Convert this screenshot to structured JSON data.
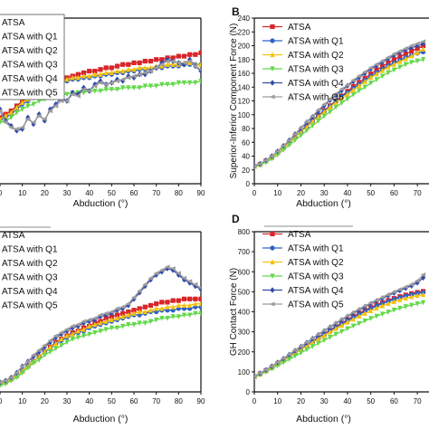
{
  "colors": {
    "ATSA": "#d7262a",
    "ATSA with Q1": "#2d62c7",
    "ATSA with Q2": "#f4c20d",
    "ATSA with Q3": "#63d84a",
    "ATSA with Q4": "#334baa",
    "ATSA with Q5": "#9c9c9c"
  },
  "markers": {
    "ATSA": "square",
    "ATSA with Q1": "circle",
    "ATSA with Q2": "triangle-up",
    "ATSA with Q3": "triangle-down",
    "ATSA with Q4": "diamond",
    "ATSA with Q5": "triangle-left"
  },
  "chart_data": [
    {
      "panel": "",
      "type": "line",
      "xlabel": "Abduction (°)",
      "ylabel": "",
      "xlim": [
        0,
        90
      ],
      "ylim": [
        0,
        100
      ],
      "xticks": [
        0,
        10,
        20,
        30,
        40,
        50,
        60,
        70,
        80,
        90
      ],
      "legend": "top-left",
      "x": [
        0,
        2.5,
        5,
        7.5,
        10,
        12.5,
        15,
        17.5,
        20,
        22.5,
        25,
        27.5,
        30,
        32.5,
        35,
        37.5,
        40,
        42.5,
        45,
        47.5,
        50,
        52.5,
        55,
        57.5,
        60,
        62.5,
        65,
        67.5,
        70,
        72.5,
        75,
        77.5,
        80,
        82.5,
        85,
        87.5,
        90
      ],
      "series": [
        {
          "name": "ATSA",
          "values": [
            40,
            42,
            44,
            47,
            50,
            52,
            54,
            56,
            58,
            60,
            62,
            63,
            64,
            65,
            66,
            67,
            68,
            68,
            69,
            70,
            70,
            71,
            72,
            72,
            73,
            73,
            74,
            74,
            75,
            75,
            76,
            76,
            77,
            77,
            78,
            78,
            79
          ]
        },
        {
          "name": "ATSA with Q1",
          "values": [
            38,
            40,
            42,
            45,
            48,
            50,
            52,
            54,
            56,
            58,
            60,
            61,
            62,
            63,
            63,
            64,
            64,
            65,
            65,
            66,
            66,
            67,
            67,
            68,
            68,
            69,
            69,
            69,
            70,
            70,
            71,
            71,
            71,
            72,
            72,
            72,
            72
          ]
        },
        {
          "name": "ATSA with Q2",
          "values": [
            39,
            41,
            43,
            46,
            49,
            51,
            53,
            55,
            57,
            59,
            61,
            62,
            63,
            64,
            64,
            65,
            65,
            66,
            66,
            67,
            67,
            68,
            68,
            69,
            69,
            70,
            70,
            70,
            71,
            71,
            72,
            72,
            72,
            73,
            73,
            72,
            72
          ]
        },
        {
          "name": "ATSA with Q3",
          "values": [
            37,
            38,
            40,
            43,
            45,
            47,
            48,
            50,
            51,
            52,
            53,
            54,
            54,
            55,
            55,
            55,
            56,
            56,
            56,
            57,
            57,
            57,
            58,
            58,
            58,
            58,
            59,
            59,
            59,
            60,
            60,
            60,
            61,
            61,
            61,
            61,
            62
          ]
        },
        {
          "name": "ATSA with Q4",
          "values": [
            45,
            38,
            35,
            32,
            33,
            40,
            36,
            42,
            38,
            45,
            48,
            52,
            50,
            55,
            54,
            58,
            56,
            60,
            62,
            60,
            61,
            63,
            62,
            65,
            64,
            66,
            66,
            68,
            70,
            73,
            75,
            74,
            73,
            72,
            75,
            71,
            68
          ]
        },
        {
          "name": "ATSA with Q5",
          "values": [
            44,
            37,
            34,
            33,
            34,
            39,
            37,
            41,
            39,
            44,
            47,
            50,
            50,
            54,
            53,
            57,
            56,
            59,
            61,
            60,
            61,
            62,
            63,
            64,
            65,
            66,
            67,
            68,
            70,
            72,
            74,
            74,
            73,
            73,
            74,
            71,
            69
          ]
        }
      ]
    },
    {
      "panel": "B",
      "type": "line",
      "xlabel": "Abduction (°)",
      "ylabel": "Superior-Inferior Component Force (N)",
      "xlim": [
        0,
        75
      ],
      "ylim": [
        0,
        240
      ],
      "xticks": [
        0,
        10,
        20,
        30,
        40,
        50,
        60,
        70
      ],
      "yticks": [
        0,
        20,
        40,
        60,
        80,
        100,
        120,
        140,
        160,
        180,
        200,
        220,
        240
      ],
      "legend": "top-left",
      "x": [
        0,
        2.5,
        5,
        7.5,
        10,
        12.5,
        15,
        17.5,
        20,
        22.5,
        25,
        27.5,
        30,
        32.5,
        35,
        37.5,
        40,
        42.5,
        45,
        47.5,
        50,
        52.5,
        55,
        57.5,
        60,
        62.5,
        65,
        67.5,
        70,
        72.5
      ],
      "series": [
        {
          "name": "ATSA",
          "values": [
            25,
            28,
            33,
            38,
            45,
            52,
            60,
            68,
            76,
            84,
            92,
            99,
            106,
            113,
            120,
            127,
            134,
            141,
            147,
            153,
            159,
            165,
            170,
            175,
            180,
            184,
            188,
            192,
            196,
            200
          ]
        },
        {
          "name": "ATSA with Q1",
          "values": [
            25,
            28,
            33,
            38,
            45,
            52,
            60,
            68,
            75,
            83,
            91,
            98,
            105,
            112,
            119,
            126,
            132,
            138,
            144,
            150,
            156,
            161,
            166,
            171,
            175,
            179,
            183,
            186,
            189,
            191
          ]
        },
        {
          "name": "ATSA with Q2",
          "values": [
            25,
            28,
            33,
            38,
            45,
            52,
            59,
            67,
            75,
            82,
            90,
            97,
            104,
            111,
            118,
            124,
            130,
            136,
            142,
            148,
            154,
            159,
            164,
            169,
            173,
            177,
            181,
            185,
            190,
            195
          ]
        },
        {
          "name": "ATSA with Q3",
          "values": [
            24,
            27,
            31,
            36,
            42,
            49,
            56,
            63,
            70,
            77,
            84,
            91,
            98,
            104,
            111,
            117,
            123,
            129,
            135,
            140,
            146,
            151,
            156,
            161,
            165,
            169,
            173,
            176,
            178,
            180
          ]
        },
        {
          "name": "ATSA with Q4",
          "values": [
            26,
            29,
            34,
            40,
            47,
            55,
            63,
            72,
            80,
            89,
            97,
            105,
            113,
            121,
            128,
            135,
            142,
            148,
            154,
            160,
            166,
            171,
            176,
            181,
            186,
            190,
            194,
            197,
            200,
            203
          ]
        },
        {
          "name": "ATSA with Q5",
          "values": [
            26,
            29,
            34,
            40,
            47,
            55,
            63,
            72,
            81,
            90,
            98,
            107,
            115,
            122,
            130,
            137,
            143,
            150,
            156,
            162,
            168,
            173,
            178,
            183,
            188,
            192,
            196,
            200,
            203,
            206
          ]
        }
      ]
    },
    {
      "panel": "",
      "type": "line",
      "xlabel": "Abduction (°)",
      "ylabel": "",
      "xlim": [
        0,
        90
      ],
      "ylim": [
        0,
        100
      ],
      "xticks": [
        0,
        10,
        20,
        30,
        40,
        50,
        60,
        70,
        80,
        90
      ],
      "legend": "top-left",
      "x": [
        0,
        2.5,
        5,
        7.5,
        10,
        12.5,
        15,
        17.5,
        20,
        22.5,
        25,
        27.5,
        30,
        32.5,
        35,
        37.5,
        40,
        42.5,
        45,
        47.5,
        50,
        52.5,
        55,
        57.5,
        60,
        62.5,
        65,
        67.5,
        70,
        72.5,
        75,
        77.5,
        80,
        82.5,
        85,
        87.5,
        90
      ],
      "series": [
        {
          "name": "ATSA",
          "values": [
            5,
            6,
            8,
            10,
            13,
            16,
            19,
            22,
            25,
            28,
            31,
            33,
            35,
            37,
            38,
            40,
            41,
            43,
            44,
            46,
            47,
            48,
            49,
            50,
            51,
            52,
            53,
            54,
            55,
            56,
            56,
            57,
            57,
            58,
            58,
            58,
            58
          ]
        },
        {
          "name": "ATSA with Q1",
          "values": [
            5,
            6,
            8,
            10,
            13,
            16,
            19,
            22,
            25,
            27,
            30,
            32,
            34,
            36,
            37,
            38,
            40,
            41,
            42,
            43,
            44,
            45,
            46,
            47,
            48,
            48,
            49,
            50,
            50,
            51,
            51,
            51,
            52,
            52,
            52,
            53,
            53
          ]
        },
        {
          "name": "ATSA with Q2",
          "values": [
            5,
            6,
            8,
            10,
            13,
            16,
            19,
            22,
            25,
            28,
            30,
            33,
            35,
            36,
            38,
            39,
            41,
            42,
            43,
            44,
            45,
            46,
            47,
            48,
            49,
            50,
            50,
            51,
            52,
            52,
            53,
            53,
            54,
            54,
            54,
            55,
            55
          ]
        },
        {
          "name": "ATSA with Q3",
          "values": [
            4,
            5,
            7,
            9,
            12,
            15,
            18,
            20,
            23,
            25,
            27,
            29,
            31,
            33,
            34,
            35,
            36,
            37,
            38,
            39,
            40,
            40,
            41,
            42,
            42,
            43,
            43,
            44,
            45,
            46,
            46,
            47,
            47,
            48,
            48,
            49,
            49
          ]
        },
        {
          "name": "ATSA with Q4",
          "values": [
            6,
            7,
            9,
            12,
            16,
            19,
            22,
            25,
            28,
            31,
            34,
            36,
            38,
            40,
            41,
            43,
            44,
            45,
            47,
            48,
            49,
            51,
            52,
            54,
            58,
            62,
            66,
            70,
            73,
            75,
            77,
            76,
            73,
            70,
            68,
            66,
            64
          ]
        },
        {
          "name": "ATSA with Q5",
          "values": [
            6,
            7,
            9,
            12,
            16,
            19,
            23,
            26,
            29,
            32,
            35,
            37,
            39,
            41,
            42,
            44,
            45,
            46,
            48,
            49,
            50,
            52,
            53,
            55,
            59,
            63,
            67,
            71,
            74,
            76,
            78,
            77,
            74,
            71,
            69,
            67,
            65
          ]
        }
      ]
    },
    {
      "panel": "D",
      "type": "line",
      "xlabel": "Abduction (°)",
      "ylabel": "GH Contact Force (N)",
      "xlim": [
        0,
        75
      ],
      "ylim": [
        0,
        800
      ],
      "xticks": [
        0,
        10,
        20,
        30,
        40,
        50,
        60,
        70
      ],
      "yticks": [
        0,
        100,
        200,
        300,
        400,
        500,
        600,
        700,
        800
      ],
      "legend": "top-left",
      "x": [
        0,
        2.5,
        5,
        7.5,
        10,
        12.5,
        15,
        17.5,
        20,
        22.5,
        25,
        27.5,
        30,
        32.5,
        35,
        37.5,
        40,
        42.5,
        45,
        47.5,
        50,
        52.5,
        55,
        57.5,
        60,
        62.5,
        65,
        67.5,
        70,
        72.5
      ],
      "series": [
        {
          "name": "ATSA",
          "values": [
            75,
            90,
            105,
            122,
            140,
            158,
            177,
            196,
            215,
            234,
            253,
            272,
            290,
            308,
            326,
            343,
            360,
            376,
            392,
            407,
            421,
            434,
            446,
            457,
            467,
            476,
            484,
            491,
            497,
            502
          ]
        },
        {
          "name": "ATSA with Q1",
          "values": [
            75,
            90,
            105,
            122,
            140,
            158,
            176,
            195,
            213,
            232,
            250,
            268,
            286,
            304,
            321,
            338,
            355,
            371,
            387,
            402,
            416,
            429,
            441,
            452,
            462,
            471,
            479,
            486,
            492,
            497
          ]
        },
        {
          "name": "ATSA with Q2",
          "values": [
            75,
            90,
            105,
            121,
            139,
            157,
            175,
            193,
            211,
            229,
            247,
            265,
            282,
            299,
            316,
            332,
            348,
            363,
            378,
            392,
            405,
            418,
            430,
            441,
            451,
            460,
            468,
            475,
            481,
            486
          ]
        },
        {
          "name": "ATSA with Q3",
          "values": [
            72,
            86,
            100,
            115,
            131,
            147,
            163,
            179,
            195,
            211,
            227,
            243,
            258,
            273,
            288,
            302,
            316,
            329,
            342,
            355,
            367,
            378,
            389,
            399,
            409,
            418,
            426,
            433,
            440,
            446
          ]
        },
        {
          "name": "ATSA with Q4",
          "values": [
            78,
            93,
            110,
            128,
            147,
            166,
            186,
            206,
            226,
            246,
            266,
            285,
            304,
            323,
            341,
            359,
            376,
            393,
            409,
            425,
            440,
            454,
            468,
            481,
            494,
            506,
            518,
            530,
            545,
            570
          ]
        },
        {
          "name": "ATSA with Q5",
          "values": [
            78,
            94,
            111,
            129,
            148,
            168,
            188,
            208,
            228,
            248,
            268,
            288,
            307,
            326,
            344,
            362,
            380,
            397,
            413,
            429,
            444,
            458,
            472,
            486,
            499,
            512,
            524,
            537,
            555,
            585
          ]
        }
      ]
    }
  ]
}
